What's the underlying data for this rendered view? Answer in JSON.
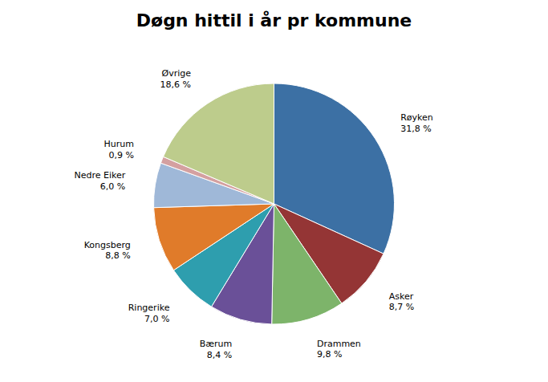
{
  "chart_data": {
    "type": "pie",
    "title": "Døgn hittil i år pr kommune",
    "categories": [
      "Røyken",
      "Asker",
      "Drammen",
      "Bærum",
      "Ringerike",
      "Kongsberg",
      "Nedre Eiker",
      "Hurum",
      "Øvrige"
    ],
    "values": [
      31.8,
      8.7,
      9.8,
      8.4,
      7.0,
      8.8,
      6.0,
      0.9,
      18.6
    ],
    "value_labels": [
      "31,8 %",
      "8,7 %",
      "9,8 %",
      "8,4 %",
      "7,0 %",
      "8,8 %",
      "6,0 %",
      "0,9 %",
      "18,6 %"
    ],
    "colors": [
      "#3C70A4",
      "#943535",
      "#7DB46A",
      "#6A5098",
      "#2E9EAE",
      "#E07B2A",
      "#9FB8D8",
      "#D4A0A0",
      "#BDCC8C"
    ],
    "data_labels": true
  }
}
